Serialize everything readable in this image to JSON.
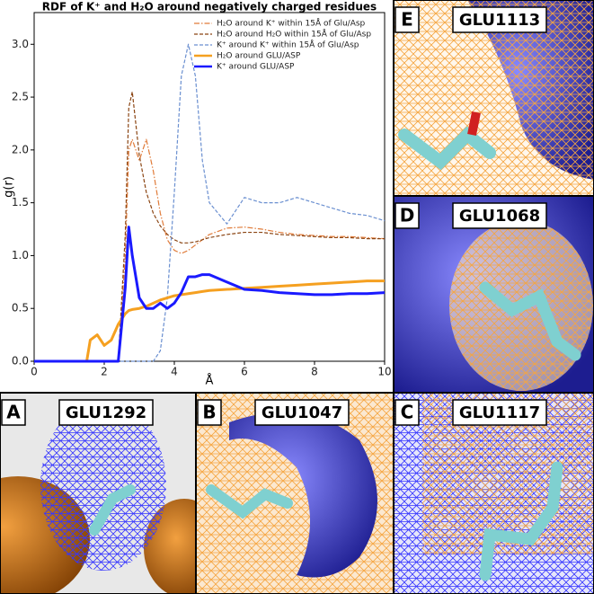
{
  "chart_data": {
    "type": "line",
    "title": "RDF of K⁺ and H₂O around negatively charged residues",
    "x_label": "Å",
    "y_label": "g(r)",
    "x": [
      0,
      1,
      1.5,
      1.6,
      1.8,
      2.0,
      2.2,
      2.4,
      2.6,
      2.7,
      2.8,
      3.0,
      3.2,
      3.4,
      3.6,
      3.8,
      4.0,
      4.2,
      4.4,
      4.6,
      4.8,
      5.0,
      5.5,
      6.0,
      6.5,
      7.0,
      7.5,
      8.0,
      8.5,
      9.0,
      9.5,
      10
    ],
    "xlim": [
      0,
      10
    ],
    "xticks": [
      0,
      2,
      4,
      6,
      8,
      10
    ],
    "ylim": [
      0,
      3.3
    ],
    "yticks": [
      {
        "value": 0,
        "label": "0.0"
      },
      0.5,
      {
        "value": 1,
        "label": "1.0"
      },
      1.5,
      {
        "value": 2,
        "label": "2.0"
      },
      2.5,
      {
        "value": 3,
        "label": "3.0"
      }
    ],
    "legend": "upper right",
    "series": [
      {
        "name": "H₂O around K⁺ within 15Å of Glu/Asp",
        "color": "#e07b39",
        "style": "dashdot",
        "width": 1.2,
        "values": [
          0,
          0,
          0,
          0,
          0,
          0,
          0,
          0,
          1.0,
          2.0,
          2.1,
          1.9,
          2.1,
          1.8,
          1.4,
          1.15,
          1.05,
          1.02,
          1.05,
          1.1,
          1.15,
          1.2,
          1.26,
          1.27,
          1.25,
          1.22,
          1.2,
          1.19,
          1.18,
          1.18,
          1.17,
          1.16
        ]
      },
      {
        "name": "H₂O around H₂O within 15Å of Glu/Asp",
        "color": "#8b4513",
        "style": "dashed",
        "width": 1.2,
        "values": [
          0,
          0,
          0,
          0,
          0,
          0,
          0,
          0,
          1.2,
          2.4,
          2.55,
          1.95,
          1.6,
          1.4,
          1.28,
          1.2,
          1.15,
          1.12,
          1.12,
          1.13,
          1.15,
          1.17,
          1.2,
          1.22,
          1.22,
          1.2,
          1.19,
          1.18,
          1.17,
          1.17,
          1.16,
          1.16
        ]
      },
      {
        "name": "K⁺ around K⁺ within 15Å of Glu/Asp",
        "color": "#6a8fd0",
        "style": "dashed",
        "width": 1.2,
        "values": [
          0,
          0,
          0,
          0,
          0,
          0,
          0,
          0,
          0,
          0,
          0,
          0,
          0,
          0,
          0.1,
          0.6,
          1.6,
          2.7,
          3.0,
          2.7,
          1.9,
          1.5,
          1.3,
          1.55,
          1.5,
          1.5,
          1.55,
          1.5,
          1.45,
          1.4,
          1.38,
          1.33
        ]
      },
      {
        "name": "H₂O around GLU/ASP",
        "color": "#f5a020",
        "style": "solid",
        "width": 3,
        "values": [
          0,
          0,
          0,
          0.2,
          0.25,
          0.15,
          0.2,
          0.35,
          0.45,
          0.48,
          0.49,
          0.5,
          0.52,
          0.55,
          0.58,
          0.6,
          0.62,
          0.63,
          0.64,
          0.65,
          0.66,
          0.67,
          0.68,
          0.69,
          0.7,
          0.71,
          0.72,
          0.73,
          0.74,
          0.75,
          0.76,
          0.76
        ]
      },
      {
        "name": "K⁺ around GLU/ASP",
        "color": "#1a1aff",
        "style": "solid",
        "width": 3,
        "values": [
          0,
          0,
          0,
          0,
          0,
          0,
          0,
          0,
          0.7,
          1.27,
          1.0,
          0.6,
          0.5,
          0.5,
          0.55,
          0.5,
          0.55,
          0.65,
          0.8,
          0.8,
          0.82,
          0.82,
          0.75,
          0.68,
          0.67,
          0.65,
          0.64,
          0.63,
          0.63,
          0.64,
          0.64,
          0.65
        ]
      }
    ]
  },
  "panels": [
    {
      "label": "E",
      "residue": "GLU1113"
    },
    {
      "label": "D",
      "residue": "GLU1068"
    },
    {
      "label": "A",
      "residue": "GLU1292"
    },
    {
      "label": "B",
      "residue": "GLU1047"
    },
    {
      "label": "C",
      "residue": "GLU1117"
    }
  ]
}
